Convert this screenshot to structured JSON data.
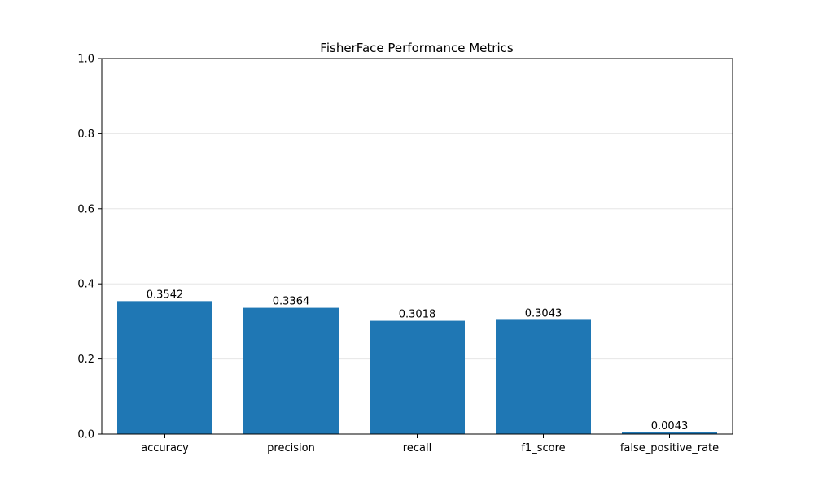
{
  "chart_data": {
    "type": "bar",
    "title": "FisherFace Performance Metrics",
    "xlabel": "",
    "ylabel": "",
    "categories": [
      "accuracy",
      "precision",
      "recall",
      "f1_score",
      "false_positive_rate"
    ],
    "values": [
      0.3542,
      0.3364,
      0.3018,
      0.3043,
      0.0043
    ],
    "value_labels": [
      "0.3542",
      "0.3364",
      "0.3018",
      "0.3043",
      "0.0043"
    ],
    "ylim": [
      0,
      1.0
    ],
    "yticks": [
      0.0,
      0.2,
      0.4,
      0.6,
      0.8,
      1.0
    ],
    "ytick_labels": [
      "0.0",
      "0.2",
      "0.4",
      "0.6",
      "0.8",
      "1.0"
    ],
    "grid": "y-axis horizontal, light",
    "bar_color": "#1f77b4",
    "grid_color": "#e6e6e6"
  }
}
